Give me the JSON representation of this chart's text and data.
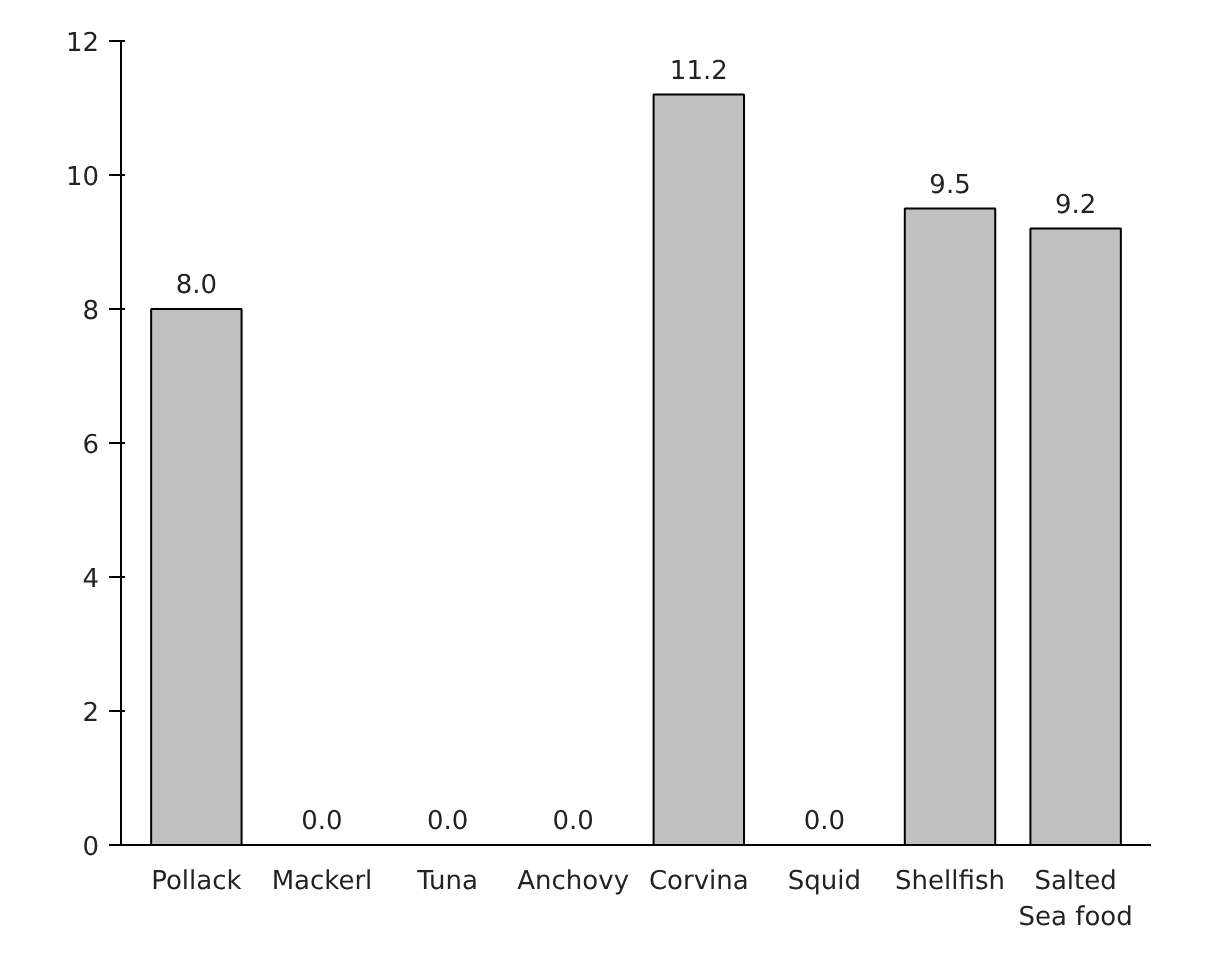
{
  "chart_data": {
    "type": "bar",
    "categories": [
      "Pollack",
      "Mackerl",
      "Tuna",
      "Anchovy",
      "Corvina",
      "Squid",
      "Shellfish",
      "Salted\nSea food"
    ],
    "values": [
      8.0,
      0.0,
      0.0,
      0.0,
      11.2,
      0.0,
      9.5,
      9.2
    ],
    "value_labels": [
      "8.0",
      "0.0",
      "0.0",
      "0.0",
      "11.2",
      "0.0",
      "9.5",
      "9.2"
    ],
    "color": "#c0c0c0",
    "ylim": [
      0,
      12
    ],
    "yticks": [
      0,
      2,
      4,
      6,
      8,
      10,
      12
    ],
    "grid": false
  }
}
